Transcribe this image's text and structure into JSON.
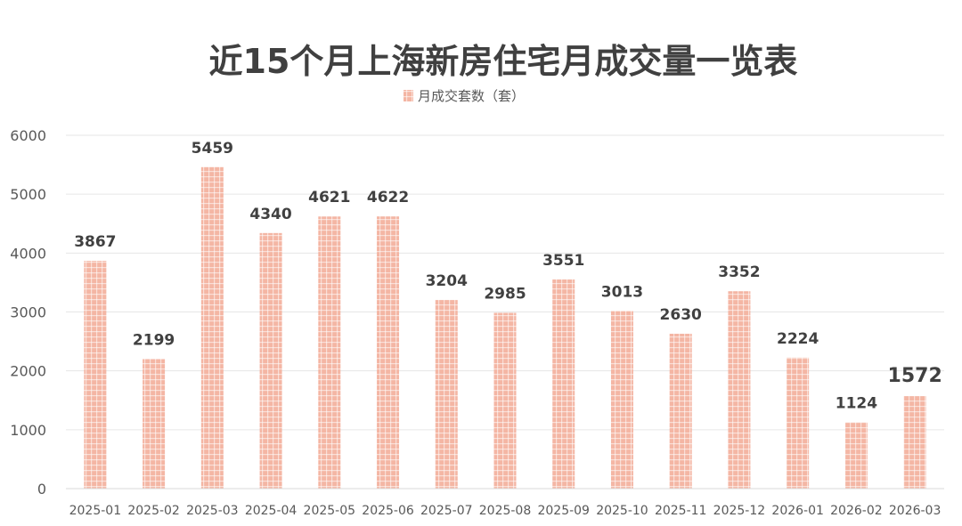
{
  "chart_data": {
    "type": "bar",
    "title": "近15个月上海新房住宅月成交量一览表",
    "xlabel": "",
    "ylabel": "",
    "categories": [
      "2025-01",
      "2025-02",
      "2025-03",
      "2025-04",
      "2025-05",
      "2025-06",
      "2025-07",
      "2025-08",
      "2025-09",
      "2025-10",
      "2025-11",
      "2025-12",
      "2026-01",
      "2026-02",
      "2026-03"
    ],
    "series": [
      {
        "name": "月成交套数（套）",
        "values": [
          3867,
          2199,
          5459,
          4340,
          4621,
          4622,
          3204,
          2985,
          3551,
          3013,
          2630,
          3352,
          2224,
          1124,
          1572
        ]
      }
    ],
    "ylim": [
      0,
      6000
    ],
    "yticks": [
      0,
      1000,
      2000,
      3000,
      4000,
      5000,
      6000
    ],
    "grid": true,
    "legend_position": "top-center",
    "bar_color": "#f4b6a4",
    "highlight_index": 14,
    "highlight_label_color": "#c00000",
    "label_color": "#404040"
  }
}
